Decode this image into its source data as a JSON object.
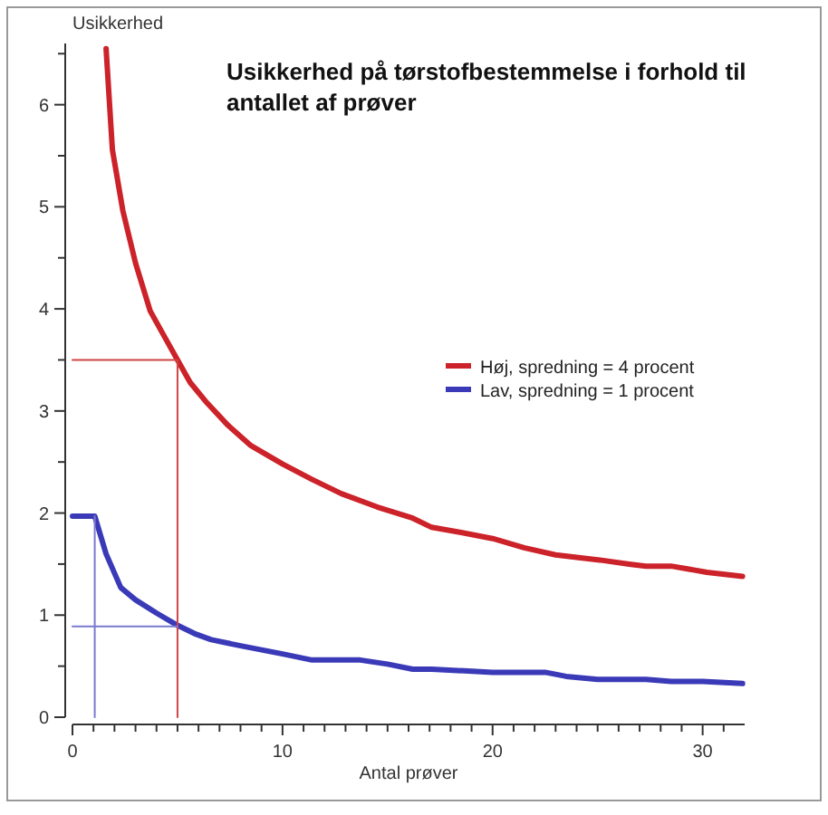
{
  "chart_data": {
    "type": "line",
    "title": "Usikkerhed på tørstofbestemmelse i forhold til antallet af prøver",
    "xlabel": "Antal prøver",
    "ylabel": "Usikkerhed",
    "xlim": [
      0,
      32
    ],
    "ylim": [
      0,
      6.6
    ],
    "xticks": [
      0,
      {
        "value": 1,
        "label": null
      },
      {
        "value": 2,
        "label": null
      },
      {
        "value": 3,
        "label": null
      },
      {
        "value": 4,
        "label": null
      },
      {
        "value": 5,
        "label": null
      },
      {
        "value": 6,
        "label": null
      },
      {
        "value": 7,
        "label": null
      },
      {
        "value": 8,
        "label": null
      },
      {
        "value": 9,
        "label": null
      },
      10,
      {
        "value": 11,
        "label": null
      },
      {
        "value": 12,
        "label": null
      },
      {
        "value": 13,
        "label": null
      },
      {
        "value": 14,
        "label": null
      },
      {
        "value": 15,
        "label": null
      },
      {
        "value": 16,
        "label": null
      },
      {
        "value": 17,
        "label": null
      },
      {
        "value": 18,
        "label": null
      },
      {
        "value": 19,
        "label": null
      },
      20,
      {
        "value": 21,
        "label": null
      },
      {
        "value": 22,
        "label": null
      },
      {
        "value": 23,
        "label": null
      },
      {
        "value": 24,
        "label": null
      },
      {
        "value": 25,
        "label": null
      },
      {
        "value": 26,
        "label": null
      },
      {
        "value": 27,
        "label": null
      },
      {
        "value": 28,
        "label": null
      },
      {
        "value": 29,
        "label": null
      },
      30,
      {
        "value": 31,
        "label": null
      }
    ],
    "yticks": [
      0,
      {
        "value": 0.5,
        "label": null
      },
      1,
      {
        "value": 1.5,
        "label": null
      },
      2,
      {
        "value": 2.5,
        "label": null
      },
      3,
      {
        "value": 3.5,
        "label": null
      },
      4,
      {
        "value": 4.5,
        "label": null
      },
      5,
      {
        "value": 5.5,
        "label": null
      },
      6,
      {
        "value": 6.5,
        "label": null
      }
    ],
    "grid": false,
    "legend": "right",
    "marker": "none",
    "line_style": "solid",
    "series": [
      {
        "name": "Høj, spredning = 4 procent",
        "color": "#cc2229",
        "x": [
          1.6,
          1.9,
          2.4,
          3.0,
          3.7,
          4.4,
          5,
          5.6,
          6.4,
          7.4,
          8.5,
          10,
          11.4,
          12.8,
          14.5,
          16.2,
          17.1,
          18.5,
          20,
          21.5,
          23,
          25.1,
          26.5,
          27.3,
          28.5,
          30.2,
          31.9
        ],
        "values": [
          6.55,
          5.56,
          4.96,
          4.45,
          3.98,
          3.72,
          3.5,
          3.28,
          3.08,
          2.86,
          2.66,
          2.48,
          2.33,
          2.19,
          2.06,
          1.95,
          1.86,
          1.81,
          1.75,
          1.66,
          1.59,
          1.54,
          1.5,
          1.48,
          1.48,
          1.42,
          1.38
        ]
      },
      {
        "name": "Lav, spredning = 1 procent",
        "color": "#3a3ab8",
        "x": [
          0,
          1.06,
          1.6,
          2.3,
          3.0,
          4.0,
          5,
          5.8,
          6.6,
          8,
          10,
          11.4,
          13.7,
          15,
          16.2,
          17.1,
          20,
          22.5,
          23.5,
          25,
          27.3,
          28.5,
          30,
          31.9
        ],
        "values": [
          1.97,
          1.97,
          1.6,
          1.27,
          1.15,
          1.02,
          0.9,
          0.82,
          0.76,
          0.7,
          0.62,
          0.56,
          0.56,
          0.52,
          0.47,
          0.47,
          0.44,
          0.44,
          0.4,
          0.37,
          0.37,
          0.35,
          0.35,
          0.33
        ]
      },
      {
        "color": "#d04545",
        "x": [
          0,
          5,
          5
        ],
        "values": [
          3.5,
          3.5,
          0
        ]
      },
      {
        "color": "#7a7ad0",
        "x": [
          0,
          5
        ],
        "values": [
          0.89,
          0.89
        ]
      },
      {
        "color": "#7a7ad0",
        "x": [
          1.06,
          1.06
        ],
        "values": [
          0,
          1.97
        ]
      }
    ]
  }
}
